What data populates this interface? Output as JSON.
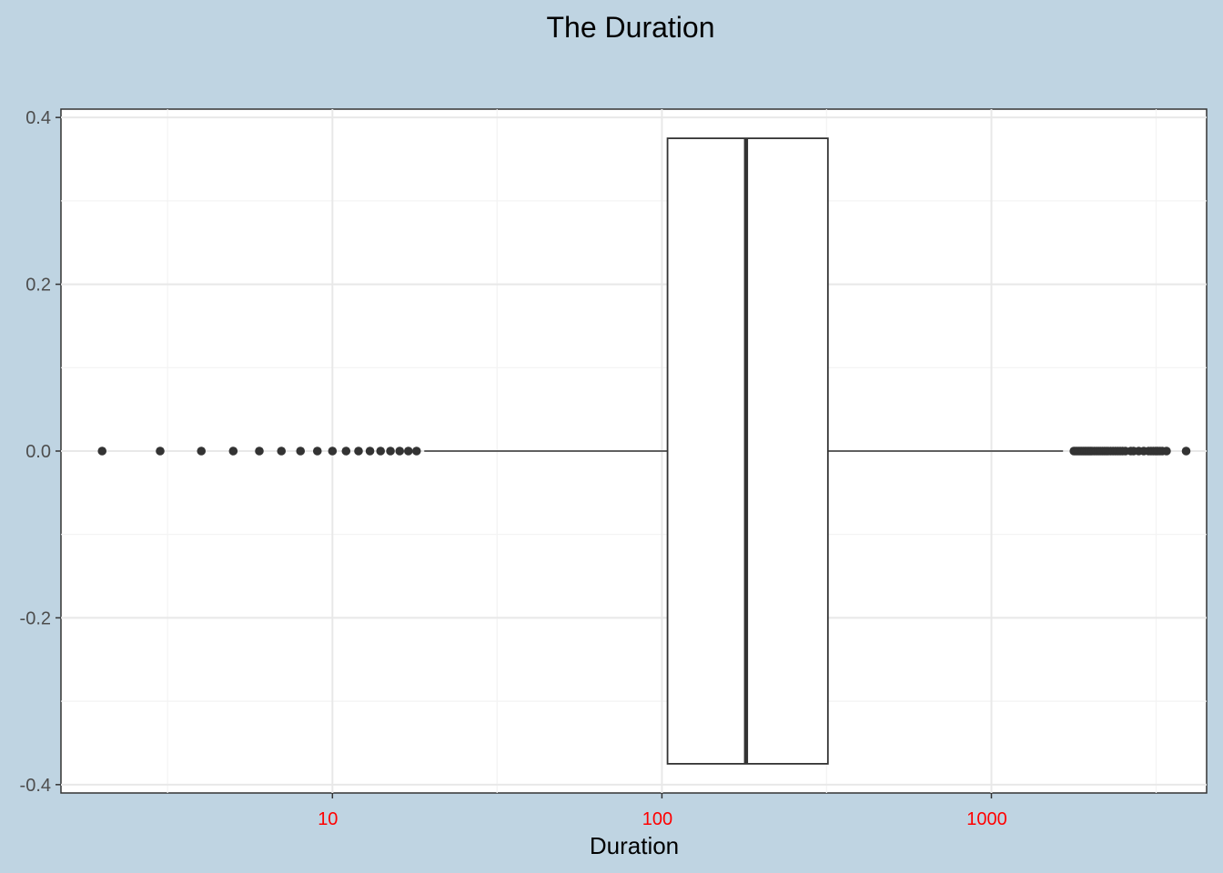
{
  "chart_data": {
    "type": "boxplot",
    "orientation": "horizontal",
    "title": "The Duration",
    "xlabel": "Duration",
    "ylabel": "",
    "x_scale": "log10",
    "xlim": [
      1.5,
      4500
    ],
    "ylim": [
      -0.41,
      0.41
    ],
    "x_ticks": [
      {
        "value": 10,
        "label": "10"
      },
      {
        "value": 100,
        "label": "100"
      },
      {
        "value": 1000,
        "label": "1000"
      }
    ],
    "x_minor_ticks": [
      3.16,
      31.6,
      316,
      3162
    ],
    "y_ticks": [
      {
        "value": 0.4,
        "label": "0.4"
      },
      {
        "value": 0.2,
        "label": "0.2"
      },
      {
        "value": 0.0,
        "label": "0.0"
      },
      {
        "value": -0.2,
        "label": "-0.2"
      },
      {
        "value": -0.4,
        "label": "-0.4"
      }
    ],
    "y_minor_ticks": [
      0.3,
      0.1,
      -0.1,
      -0.3
    ],
    "box": {
      "y_center": 0,
      "half_height": 0.375,
      "whisker_low": 19,
      "q1": 104,
      "median": 180,
      "q3": 319,
      "whisker_high": 1650
    },
    "outliers_low": [
      2,
      3,
      4,
      5,
      6,
      7,
      8,
      9,
      10,
      11,
      12,
      13,
      14,
      15,
      16,
      17,
      18
    ],
    "outliers_high": [
      1780,
      1800,
      1820,
      1840,
      1860,
      1880,
      1900,
      1920,
      1940,
      1960,
      1980,
      2000,
      2020,
      2050,
      2080,
      2110,
      2140,
      2170,
      2200,
      2230,
      2260,
      2300,
      2340,
      2380,
      2420,
      2460,
      2500,
      2550,
      2650,
      2700,
      2800,
      2900,
      3000,
      3050,
      3100,
      3150,
      3200,
      3250,
      3300,
      3400,
      3900
    ],
    "grid": true,
    "legend": "none",
    "colors": {
      "background": "#bfd4e2",
      "panel": "#ffffff",
      "grid_major": "#e8e8e8",
      "grid_minor": "#f3f3f3",
      "box_line": "#333333",
      "points": "#333333",
      "x_tick_text": "#ff0000",
      "y_tick_text": "#4d4d4d"
    }
  }
}
